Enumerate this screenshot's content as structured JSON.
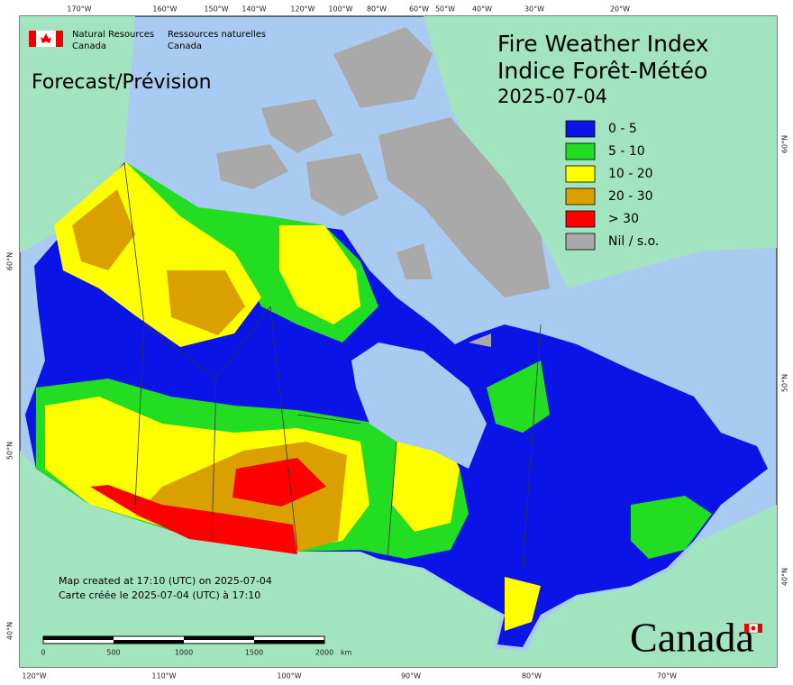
{
  "agency": {
    "english": [
      "Natural Resources",
      "Canada"
    ],
    "french": [
      "Ressources naturelles",
      "Canada"
    ]
  },
  "title": {
    "lines": [
      "Fire Weather Index",
      "Indice Forêt-Météo"
    ],
    "date": "2025-07-04"
  },
  "mode": "Forecast/Prévision",
  "legend": [
    {
      "label": "0 - 5",
      "color": "#0a14e6"
    },
    {
      "label": "5 - 10",
      "color": "#22dd22"
    },
    {
      "label": "10 - 20",
      "color": "#ffff00"
    },
    {
      "label": "20 - 30",
      "color": "#daa000"
    },
    {
      "label": "> 30",
      "color": "#ff0000"
    },
    {
      "label": "Nil / s.o.",
      "color": "#a9a9a9"
    }
  ],
  "credits": [
    "Map created at 17:10 (UTC) on 2025-07-04",
    "Carte créée le 2025-07-04 (UTC) à 17:10"
  ],
  "scale": {
    "labels": [
      "0",
      "500",
      "1000",
      "1500",
      "2000"
    ],
    "unit": "km"
  },
  "graticule": {
    "top": [
      "170°W",
      "160°W",
      "150°W",
      "140°W",
      "120°W",
      "100°W",
      "80°W",
      "60°W",
      "50°W",
      "40°W",
      "30°W",
      "20°W"
    ],
    "bottom": [
      "120°W",
      "110°W",
      "100°W",
      "90°W",
      "80°W",
      "70°W"
    ],
    "left": [
      "60°N",
      "50°N",
      "40°N"
    ],
    "right": [
      "60°N",
      "50°N",
      "40°N"
    ]
  },
  "wordmark": "Canada"
}
